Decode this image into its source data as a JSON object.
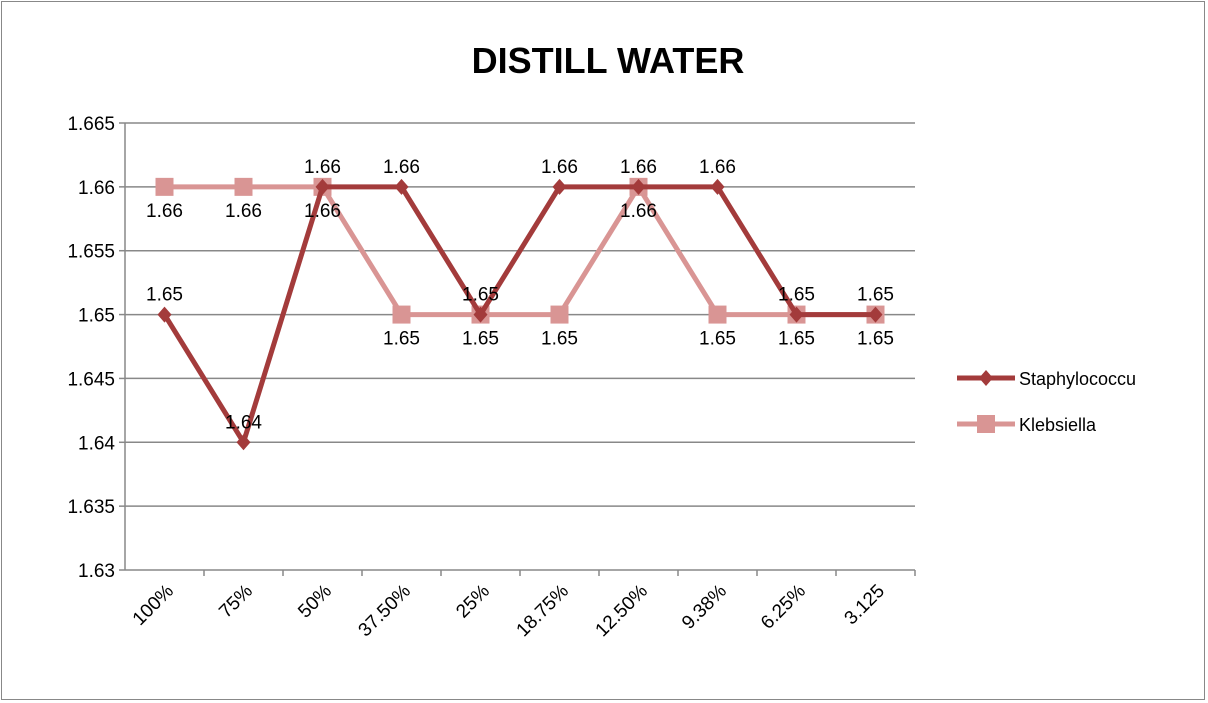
{
  "chart_data": {
    "type": "line",
    "title": "DISTILL WATER",
    "xlabel": "",
    "ylabel": "",
    "categories": [
      "100%",
      "75%",
      "50%",
      "37.50%",
      "25%",
      "18.75%",
      "12.50%",
      "9.38%",
      "6.25%",
      "3.125"
    ],
    "ylim": [
      1.63,
      1.665
    ],
    "yticks": [
      "1.63",
      "1.635",
      "1.64",
      "1.645",
      "1.65",
      "1.655",
      "1.66",
      "1.665"
    ],
    "grid": true,
    "legend_position": "right",
    "series": [
      {
        "name": "Staphylococcu",
        "color": "#A33B3B",
        "marker": "diamond",
        "values": [
          1.65,
          1.64,
          1.66,
          1.66,
          1.65,
          1.66,
          1.66,
          1.66,
          1.65,
          1.65
        ],
        "labels": [
          "1.65",
          "1.64",
          "1.66",
          "1.66",
          "1.65",
          "1.66",
          "1.66",
          "1.66",
          "1.65",
          "1.65"
        ]
      },
      {
        "name": "Klebsiella",
        "color": "#D99594",
        "marker": "square",
        "values": [
          1.66,
          1.66,
          1.66,
          1.65,
          1.65,
          1.65,
          1.66,
          1.65,
          1.65,
          1.65
        ],
        "labels": [
          "1.66",
          "1.66",
          "1.66",
          "1.65",
          "1.65",
          "1.65",
          "1.66",
          "1.65",
          "1.65",
          "1.65"
        ]
      }
    ]
  }
}
